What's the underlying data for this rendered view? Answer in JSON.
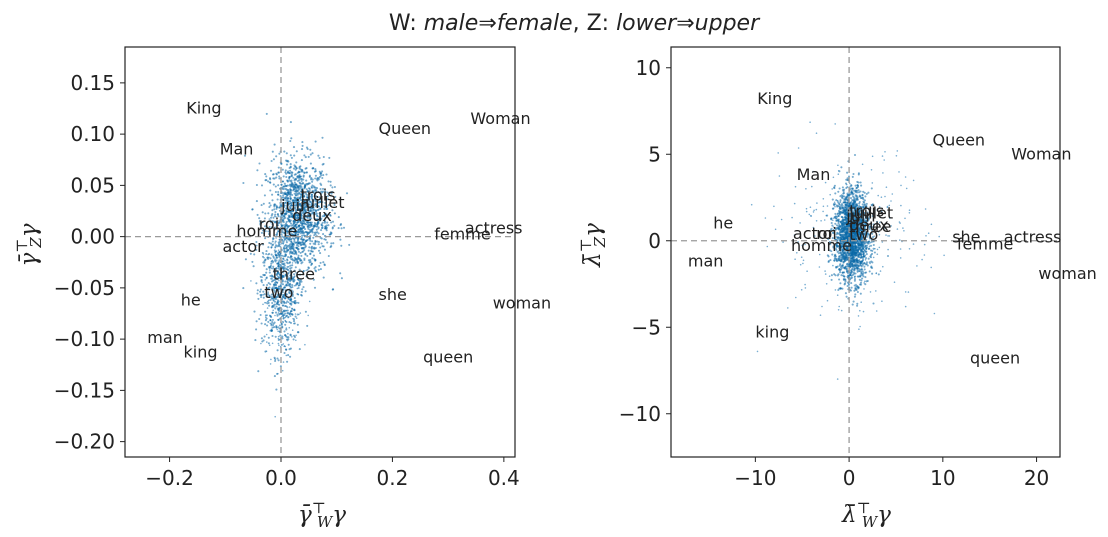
{
  "figure": {
    "title_w_prefix": "W: ",
    "title_w_from": "male",
    "title_w_to": "female",
    "title_z_prefix": ", Z: ",
    "title_z_from": "lower",
    "title_z_to": "upper",
    "arrow": "⇒"
  },
  "colors": {
    "points": "#1f78b4",
    "points_dense": "#0b69a8",
    "zero_line": "#9a9a9a"
  },
  "chart_data": [
    {
      "type": "scatter",
      "xlabel": "γ̄_W^⊤ γ",
      "ylabel": "γ̄_Z^⊤ γ",
      "xlim": [
        -0.28,
        0.42
      ],
      "ylim": [
        -0.215,
        0.185
      ],
      "xticks": [
        -0.2,
        0.0,
        0.2,
        0.4
      ],
      "xtick_labels": [
        "−0.2",
        "0.0",
        "0.2",
        "0.4"
      ],
      "yticks": [
        -0.2,
        -0.15,
        -0.1,
        -0.05,
        0.0,
        0.05,
        0.1,
        0.15
      ],
      "ytick_labels": [
        "−0.20",
        "−0.15",
        "−0.10",
        "−0.05",
        "0.00",
        "0.05",
        "0.10",
        "0.15"
      ],
      "zero_lines": true,
      "cloud": {
        "center_x": 0.03,
        "center_y": 0.02,
        "note": "dense cloud of background word points"
      },
      "labeled_points": [
        {
          "word": "King",
          "x": -0.17,
          "y": 0.12
        },
        {
          "word": "Man",
          "x": -0.11,
          "y": 0.08
        },
        {
          "word": "Queen",
          "x": 0.175,
          "y": 0.1
        },
        {
          "word": "Woman",
          "x": 0.34,
          "y": 0.11
        },
        {
          "word": "trois",
          "x": 0.035,
          "y": 0.035
        },
        {
          "word": "juillet",
          "x": 0.035,
          "y": 0.028
        },
        {
          "word": "juin",
          "x": 0.0,
          "y": 0.025
        },
        {
          "word": "deux",
          "x": 0.02,
          "y": 0.015
        },
        {
          "word": "roi",
          "x": -0.04,
          "y": 0.007
        },
        {
          "word": "homme",
          "x": -0.08,
          "y": 0.0
        },
        {
          "word": "actor",
          "x": -0.105,
          "y": -0.015
        },
        {
          "word": "actress",
          "x": 0.33,
          "y": 0.003
        },
        {
          "word": "femme",
          "x": 0.275,
          "y": -0.003
        },
        {
          "word": "three",
          "x": -0.015,
          "y": -0.042
        },
        {
          "word": "two",
          "x": -0.03,
          "y": -0.06
        },
        {
          "word": "he",
          "x": -0.18,
          "y": -0.067
        },
        {
          "word": "she",
          "x": 0.175,
          "y": -0.062
        },
        {
          "word": "woman",
          "x": 0.38,
          "y": -0.07
        },
        {
          "word": "man",
          "x": -0.24,
          "y": -0.104
        },
        {
          "word": "king",
          "x": -0.175,
          "y": -0.118
        },
        {
          "word": "queen",
          "x": 0.255,
          "y": -0.123
        }
      ]
    },
    {
      "type": "scatter",
      "xlabel": "λ̄_W^⊤ γ",
      "ylabel": "λ̄_Z^⊤ γ",
      "xlim": [
        -19,
        22.5
      ],
      "ylim": [
        -12.5,
        11.2
      ],
      "xticks": [
        -10,
        0,
        10,
        20
      ],
      "xtick_labels": [
        "−10",
        "0",
        "10",
        "20"
      ],
      "yticks": [
        -10,
        -5,
        0,
        5,
        10
      ],
      "ytick_labels": [
        "−10",
        "−5",
        "0",
        "5",
        "10"
      ],
      "zero_lines": true,
      "cloud": {
        "center_x": 0.3,
        "center_y": 0.3,
        "note": "dense cloud of background word points"
      },
      "labeled_points": [
        {
          "word": "King",
          "x": -9.8,
          "y": 7.9
        },
        {
          "word": "Queen",
          "x": 8.9,
          "y": 5.5
        },
        {
          "word": "Woman",
          "x": 17.3,
          "y": 4.7
        },
        {
          "word": "Man",
          "x": -5.6,
          "y": 3.5
        },
        {
          "word": "trois",
          "x": 0.0,
          "y": 1.4
        },
        {
          "word": "juillet",
          "x": 0.0,
          "y": 1.3
        },
        {
          "word": "juin",
          "x": -0.3,
          "y": 1.1
        },
        {
          "word": "deux",
          "x": 0.0,
          "y": 0.6
        },
        {
          "word": "three",
          "x": 0.0,
          "y": 0.5
        },
        {
          "word": "roi",
          "x": -3.5,
          "y": 0.1
        },
        {
          "word": "two",
          "x": 0.0,
          "y": 0.05
        },
        {
          "word": "he",
          "x": -14.5,
          "y": 0.7
        },
        {
          "word": "actor",
          "x": -6.0,
          "y": 0.1
        },
        {
          "word": "homme",
          "x": -6.2,
          "y": -0.6
        },
        {
          "word": "she",
          "x": 11.0,
          "y": -0.1
        },
        {
          "word": "actress",
          "x": 16.5,
          "y": -0.1
        },
        {
          "word": "femme",
          "x": 11.5,
          "y": -0.5
        },
        {
          "word": "man",
          "x": -17.2,
          "y": -1.5
        },
        {
          "word": "woman",
          "x": 20.2,
          "y": -2.2
        },
        {
          "word": "king",
          "x": -10.0,
          "y": -5.6
        },
        {
          "word": "queen",
          "x": 12.9,
          "y": -7.1
        }
      ]
    }
  ]
}
